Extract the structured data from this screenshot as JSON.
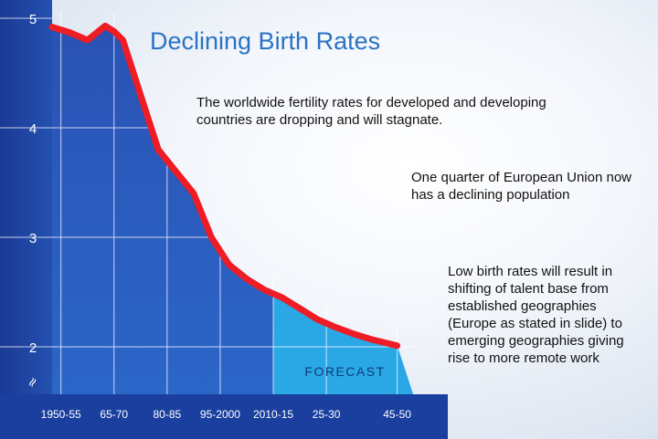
{
  "title": "Declining Birth Rates",
  "descriptions": [
    "The worldwide fertility rates for developed and developing countries are dropping and will stagnate.",
    "One quarter of European Union now has a declining population",
    "Low birth rates will result in shifting of talent base from established geographies (Europe as stated in slide) to emerging geographies giving rise to more remote work"
  ],
  "colors": {
    "chart_dark": "#1f3f9a",
    "chart_mid": "#2a62c4",
    "forecast_fill": "#2aa8e6",
    "line": "#ee1c24",
    "title": "#2a72c4"
  },
  "chart_data": {
    "type": "line",
    "title": "Declining Birth Rates",
    "xlabel": "",
    "ylabel": "",
    "ylim": [
      1.8,
      5.0
    ],
    "y_ticks": [
      2,
      3,
      4,
      5
    ],
    "y_axis_break": "≈",
    "x_tick_labels": [
      "1950-55",
      "65-70",
      "80-85",
      "95-2000",
      "2010-15",
      "25-30",
      "45-50"
    ],
    "x_tick_positions": [
      1952.5,
      1967.5,
      1982.5,
      1997.5,
      2012.5,
      2027.5,
      2047.5
    ],
    "xlim": [
      1950,
      2052
    ],
    "annotation": "FORECAST",
    "forecast_start": 2012.5,
    "forecast_end": 2047.5,
    "series": [
      {
        "name": "Fertility rate",
        "x": [
          1950,
          1955,
          1960,
          1965,
          1967.5,
          1970,
          1975,
          1980,
          1985,
          1990,
          1995,
          2000,
          2005,
          2010,
          2015,
          2020,
          2025,
          2030,
          2035,
          2040,
          2045,
          2047.5
        ],
        "y": [
          4.92,
          4.87,
          4.8,
          4.93,
          4.88,
          4.8,
          4.3,
          3.8,
          3.6,
          3.4,
          3.0,
          2.75,
          2.62,
          2.52,
          2.45,
          2.35,
          2.25,
          2.18,
          2.12,
          2.07,
          2.03,
          2.01
        ]
      }
    ]
  }
}
